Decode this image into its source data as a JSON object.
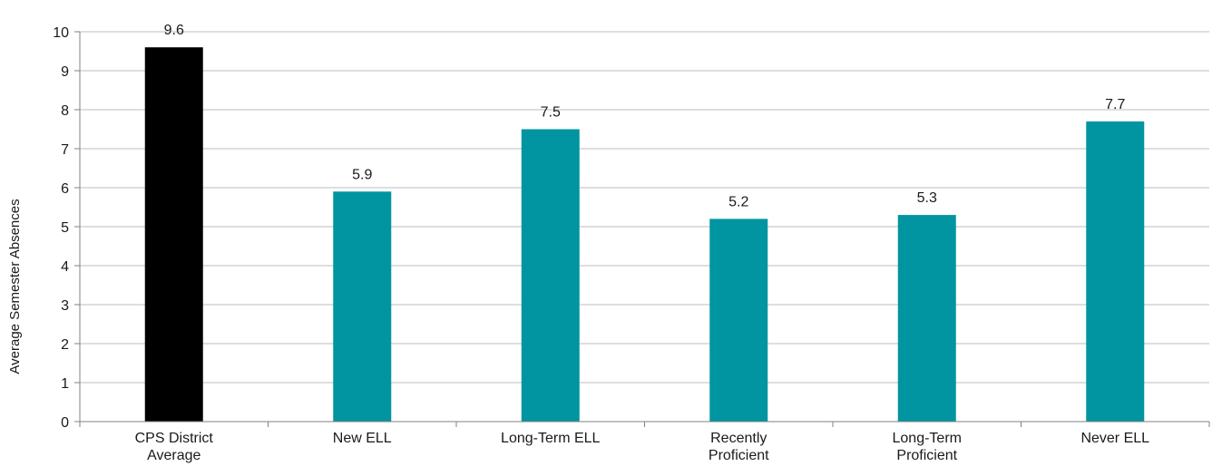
{
  "chart_data": {
    "type": "bar",
    "title": "",
    "xlabel": "",
    "ylabel": "Average Semester Absences",
    "ylim": [
      0,
      10
    ],
    "yticks": [
      0,
      1,
      2,
      3,
      4,
      5,
      6,
      7,
      8,
      9,
      10
    ],
    "grid": true,
    "legend": "none",
    "categories": [
      [
        "CPS District",
        "Average"
      ],
      [
        "New ELL"
      ],
      [
        "Long-Term ELL"
      ],
      [
        "Recently",
        "Proficient"
      ],
      [
        "Long-Term",
        "Proficient"
      ],
      [
        "Never ELL"
      ]
    ],
    "values": [
      9.6,
      5.9,
      7.5,
      5.2,
      5.3,
      7.7
    ],
    "data_labels": [
      "9.6",
      "5.9",
      "7.5",
      "5.2",
      "5.3",
      "7.7"
    ],
    "colors": [
      "#000000",
      "#0095a0",
      "#0095a0",
      "#0095a0",
      "#0095a0",
      "#0095a0"
    ],
    "grid_color": "#bdbdbd",
    "axis_color": "#808080"
  }
}
